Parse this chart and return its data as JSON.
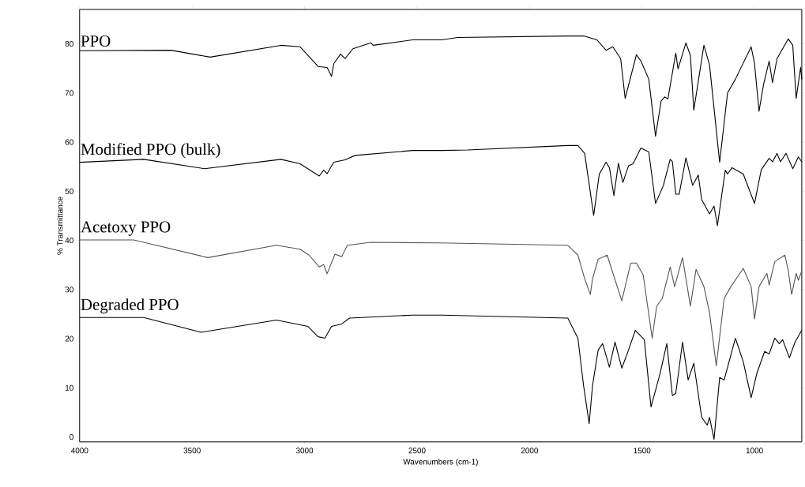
{
  "chart_data": {
    "type": "line",
    "xlabel": "Wavenumbers (cm-1)",
    "ylabel": "% Transmittance",
    "xlim": [
      4000,
      790
    ],
    "xticks": [
      4000,
      3500,
      3000,
      2500,
      2000,
      1500,
      1000
    ],
    "ylim": [
      -1,
      87
    ],
    "yticks": [
      0,
      10,
      20,
      30,
      40,
      50,
      60,
      70,
      80
    ],
    "grid": false,
    "legend": false,
    "marker": "none",
    "series": [
      {
        "name": "PPO",
        "color": "#000000",
        "x": [
          4000,
          3595,
          3420,
          3105,
          3020,
          2940,
          2900,
          2880,
          2870,
          2840,
          2820,
          2785,
          2705,
          2695,
          2520,
          2390,
          2320,
          1830,
          1760,
          1700,
          1660,
          1630,
          1595,
          1575,
          1525,
          1505,
          1470,
          1440,
          1415,
          1400,
          1385,
          1350,
          1340,
          1305,
          1285,
          1270,
          1225,
          1200,
          1155,
          1120,
          1085,
          1015,
          1000,
          980,
          960,
          935,
          920,
          900,
          850,
          830,
          815,
          795,
          790
        ],
        "values": [
          78.6,
          78.7,
          77.3,
          79.7,
          79.4,
          75.4,
          75.2,
          73.4,
          76,
          77.9,
          77,
          79,
          80.2,
          79.7,
          80.8,
          80.8,
          81.3,
          81.6,
          81.6,
          80.8,
          78.7,
          79.4,
          77,
          68.9,
          77.8,
          76.5,
          72.8,
          61.2,
          68.4,
          69.2,
          68.8,
          78.1,
          74.9,
          80.2,
          77.6,
          66.5,
          79.7,
          75.7,
          55.9,
          70,
          72.8,
          79.4,
          76,
          66.3,
          71.7,
          76.5,
          72.1,
          77,
          81,
          79.7,
          68.9,
          75.2,
          72.8
        ]
      },
      {
        "name": "Modified PPO (bulk)",
        "color": "#000000",
        "x": [
          4000,
          3715,
          3445,
          3105,
          3020,
          2935,
          2915,
          2900,
          2870,
          2820,
          2775,
          2520,
          2390,
          2275,
          1830,
          1785,
          1755,
          1715,
          1690,
          1660,
          1645,
          1625,
          1605,
          1585,
          1560,
          1540,
          1505,
          1470,
          1440,
          1405,
          1375,
          1365,
          1350,
          1335,
          1305,
          1275,
          1250,
          1235,
          1200,
          1180,
          1165,
          1130,
          1120,
          1100,
          1050,
          1000,
          970,
          935,
          920,
          900,
          885,
          860,
          830,
          805,
          790
        ],
        "values": [
          55.9,
          56.5,
          54.6,
          56.5,
          55.6,
          53.1,
          54.3,
          53.6,
          55.9,
          56.4,
          57.3,
          58.3,
          58.3,
          58.4,
          59.3,
          59.3,
          57.7,
          45.1,
          53.5,
          55.9,
          54.8,
          49.1,
          55.7,
          51.8,
          55.2,
          55.6,
          58.8,
          58,
          47.5,
          51.2,
          56.5,
          56,
          49.4,
          49.4,
          56.8,
          51.2,
          53.3,
          48.3,
          45.4,
          47,
          43,
          54.3,
          53.5,
          54.8,
          53.5,
          47.5,
          54.4,
          56.7,
          56,
          57.7,
          56,
          57.7,
          54.6,
          57,
          56
        ]
      },
      {
        "name": "Acetoxy PPO",
        "color": "#555555",
        "x": [
          4000,
          3760,
          3715,
          3430,
          3125,
          3020,
          2980,
          2935,
          2915,
          2900,
          2865,
          2835,
          2810,
          2705,
          2400,
          1830,
          1785,
          1755,
          1730,
          1720,
          1695,
          1655,
          1590,
          1550,
          1525,
          1495,
          1455,
          1435,
          1410,
          1375,
          1355,
          1320,
          1285,
          1260,
          1225,
          1200,
          1170,
          1135,
          1105,
          1050,
          1015,
          1000,
          980,
          945,
          935,
          910,
          865,
          850,
          835,
          815,
          805,
          790
        ],
        "values": [
          40.1,
          40.1,
          39.6,
          36.5,
          39,
          38.2,
          37,
          34.6,
          35.1,
          33.2,
          37.2,
          36.7,
          39,
          39.6,
          39.5,
          39,
          37,
          32.2,
          29,
          32.2,
          36.2,
          37,
          27.7,
          35.4,
          35.4,
          33,
          20.1,
          26.6,
          28.2,
          34.6,
          30.6,
          36.5,
          26.6,
          34.1,
          30.6,
          25.3,
          14.5,
          28.2,
          30.6,
          34.3,
          30.6,
          24,
          30.6,
          33.3,
          30.9,
          35.7,
          37,
          33.8,
          29,
          33.3,
          31.9,
          33.8
        ]
      },
      {
        "name": "Degraded PPO",
        "color": "#000000",
        "x": [
          4000,
          3715,
          3460,
          3125,
          2985,
          2940,
          2910,
          2880,
          2835,
          2800,
          2520,
          2390,
          1830,
          1785,
          1760,
          1735,
          1720,
          1695,
          1675,
          1645,
          1620,
          1590,
          1560,
          1530,
          1490,
          1460,
          1420,
          1390,
          1365,
          1350,
          1320,
          1295,
          1270,
          1235,
          1210,
          1200,
          1180,
          1155,
          1135,
          1085,
          1050,
          1015,
          990,
          955,
          935,
          910,
          890,
          875,
          845,
          820,
          790
        ],
        "values": [
          24.3,
          24.3,
          21.3,
          23.8,
          22.5,
          20.4,
          20.1,
          22.5,
          23,
          24.2,
          24.8,
          24.8,
          24.2,
          20.1,
          10.5,
          2.7,
          10.5,
          17.7,
          19,
          14.2,
          19.3,
          14,
          17.7,
          21.7,
          19.8,
          6.1,
          12.9,
          19,
          8.4,
          8.9,
          19.3,
          11.6,
          15,
          4,
          2.4,
          4,
          -0.5,
          12.1,
          11.6,
          20.1,
          15.3,
          8,
          12.9,
          17.4,
          16.9,
          20.1,
          19,
          19.8,
          16.1,
          19.3,
          21.7
        ]
      }
    ]
  }
}
